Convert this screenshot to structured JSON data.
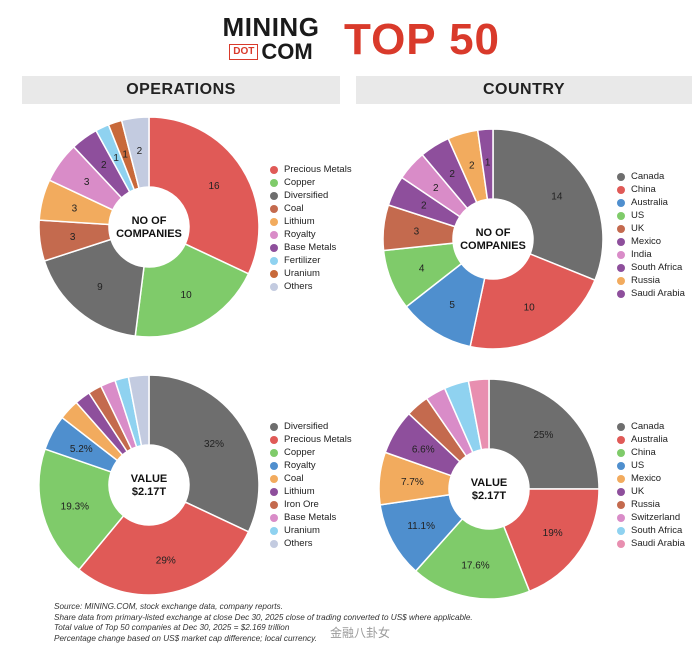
{
  "header": {
    "logo_line1": "MINING",
    "logo_dot": "DOT",
    "logo_com": "COM",
    "title": "TOP 50"
  },
  "sections": {
    "left": "OPERATIONS",
    "right": "COUNTRY"
  },
  "chart_data": [
    {
      "type": "pie",
      "id": "ops-count",
      "center_label": [
        "NO OF",
        "COMPANIES"
      ],
      "categories": [
        "Precious Metals",
        "Copper",
        "Diversified",
        "Coal",
        "Lithium",
        "Royalty",
        "Base Metals",
        "Fertilizer",
        "Uranium",
        "Others"
      ],
      "values": [
        16,
        10,
        9,
        3,
        3,
        3,
        2,
        1,
        1,
        2
      ],
      "labels": [
        "16",
        "10",
        "9",
        "3",
        "3",
        "3",
        "2",
        "1",
        "1",
        "2"
      ],
      "colors": [
        "#e05a57",
        "#7fcb6a",
        "#6e6e6e",
        "#c46a4e",
        "#f2ab5e",
        "#d98cc8",
        "#8e4f9c",
        "#8fd2f0",
        "#c8693a",
        "#c3cbe0"
      ]
    },
    {
      "type": "pie",
      "id": "country-count",
      "center_label": [
        "NO OF",
        "COMPANIES"
      ],
      "categories": [
        "Canada",
        "China",
        "Australia",
        "US",
        "UK",
        "Mexico",
        "India",
        "South Africa",
        "Russia",
        "Saudi Arabia"
      ],
      "values": [
        14,
        10,
        5,
        4,
        3,
        2,
        2,
        2,
        2,
        1
      ],
      "labels": [
        "14",
        "10",
        "5",
        "4",
        "3",
        "2",
        "2",
        "2",
        "2",
        "1"
      ],
      "colors": [
        "#6e6e6e",
        "#e05a57",
        "#4f8fce",
        "#7fcb6a",
        "#c46a4e",
        "#8e4f9c",
        "#d98cc8",
        "#8e4f9c",
        "#f2ab5e",
        "#8e4f9c"
      ]
    },
    {
      "type": "pie",
      "id": "ops-value",
      "center_label": [
        "VALUE",
        "$2.17T"
      ],
      "categories": [
        "Diversified",
        "Precious Metals",
        "Copper",
        "Royalty",
        "Coal",
        "Lithium",
        "Iron Ore",
        "Base Metals",
        "Uranium",
        "Others"
      ],
      "values": [
        32,
        29,
        19.3,
        5.2,
        3.0,
        2.3,
        2.0,
        2.2,
        2.0,
        3.0
      ],
      "labels": [
        "32%",
        "29%",
        "19.3%",
        "5.2%",
        "",
        "",
        "",
        "",
        "",
        ""
      ],
      "colors": [
        "#6e6e6e",
        "#e05a57",
        "#7fcb6a",
        "#4f8fce",
        "#f2ab5e",
        "#8e4f9c",
        "#c46a4e",
        "#d98cc8",
        "#8fd2f0",
        "#c3cbe0"
      ]
    },
    {
      "type": "pie",
      "id": "country-value",
      "center_label": [
        "VALUE",
        "$2.17T"
      ],
      "categories": [
        "Canada",
        "Australia",
        "China",
        "US",
        "Mexico",
        "UK",
        "Russia",
        "Switzerland",
        "South Africa",
        "Saudi Arabia"
      ],
      "values": [
        25,
        19,
        17.6,
        11.1,
        7.7,
        6.6,
        3.4,
        3.0,
        3.6,
        3.0
      ],
      "labels": [
        "25%",
        "19%",
        "17.6%",
        "11.1%",
        "7.7%",
        "6.6%",
        "",
        "",
        "",
        ""
      ],
      "colors": [
        "#6e6e6e",
        "#e05a57",
        "#7fcb6a",
        "#4f8fce",
        "#f2ab5e",
        "#8e4f9c",
        "#c46a4e",
        "#d98cc8",
        "#8fd2f0",
        "#e88fb0"
      ]
    }
  ],
  "footer": {
    "lines": [
      "Source: MINING.COM, stock exchange data, company reports.",
      "Share data from primary-listed exchange at close Dec 30, 2025 close of trading converted to US$ where applicable.",
      "Total value of Top 50 companies at Dec 30, 2025 = $2.169 trillion",
      "Percentage change based on US$ market cap difference; local currency."
    ],
    "watermark": "金融八卦女"
  }
}
